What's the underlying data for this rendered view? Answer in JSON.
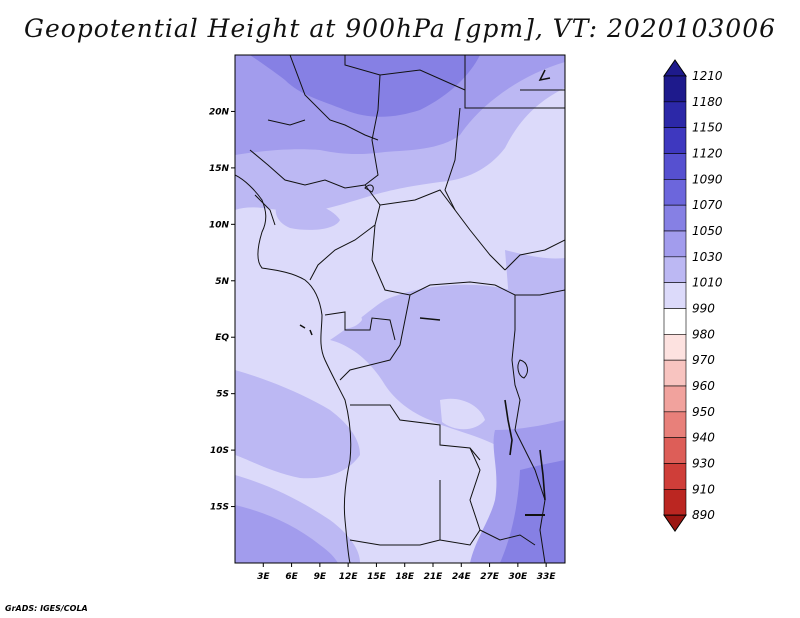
{
  "title": "Geopotential Height at 900hPa [gpm], VT: 2020103006",
  "credit": "GrADS: IGES/COLA",
  "map": {
    "lat_labels": [
      "20N",
      "15N",
      "10N",
      "5N",
      "EQ",
      "5S",
      "10S",
      "15S"
    ],
    "lat_values": [
      20,
      15,
      10,
      5,
      0,
      -5,
      -10,
      -15
    ],
    "lon_labels": [
      "3E",
      "6E",
      "9E",
      "12E",
      "15E",
      "18E",
      "21E",
      "24E",
      "27E",
      "30E",
      "33E"
    ],
    "lon_values": [
      3,
      6,
      9,
      12,
      15,
      18,
      21,
      24,
      27,
      30,
      33
    ],
    "lon_range": [
      0,
      35
    ],
    "lat_range": [
      -20,
      25
    ]
  },
  "colorbar": {
    "labels": [
      "1210",
      "1180",
      "1150",
      "1120",
      "1090",
      "1070",
      "1050",
      "1030",
      "1010",
      "990",
      "980",
      "970",
      "960",
      "950",
      "940",
      "930",
      "910",
      "890"
    ],
    "colors": [
      "#1e1a8c",
      "#2c28a8",
      "#3e38bf",
      "#5650d0",
      "#6c66dc",
      "#8680e4",
      "#a29ced",
      "#bcb8f3",
      "#dcdafa",
      "#ffffff",
      "#fde2e0",
      "#f8c4c0",
      "#f1a29d",
      "#e8807a",
      "#dd5e58",
      "#cf3e39",
      "#bb2621",
      "#9c1612"
    ]
  }
}
